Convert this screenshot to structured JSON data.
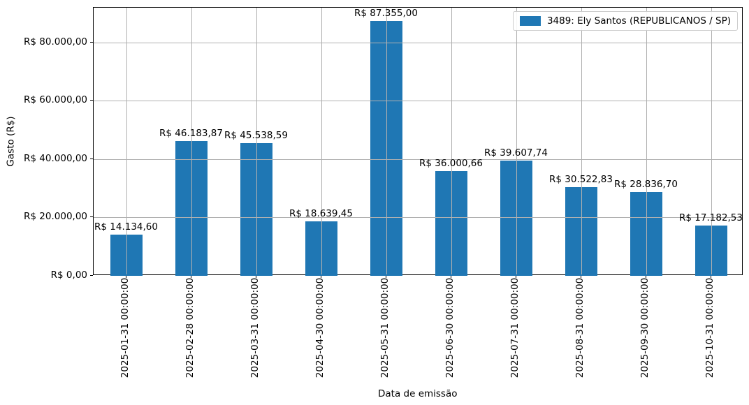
{
  "chart_data": {
    "type": "bar",
    "xlabel": "Data de emissão",
    "ylabel": "Gasto (R$)",
    "legend": {
      "label": "3489: Ely Santos (REPUBLICANOS / SP)",
      "position": "upper right"
    },
    "bar_color": "#1f77b4",
    "grid": true,
    "grid_color": "#b0b0b0",
    "background_color": "#ffffff",
    "ylim": [
      0,
      91976
    ],
    "categories": [
      "2025-01-31 00:00:00",
      "2025-02-28 00:00:00",
      "2025-03-31 00:00:00",
      "2025-04-30 00:00:00",
      "2025-05-31 00:00:00",
      "2025-06-30 00:00:00",
      "2025-07-31 00:00:00",
      "2025-08-31 00:00:00",
      "2025-09-30 00:00:00",
      "2025-10-31 00:00:00"
    ],
    "values": [
      14134.6,
      46183.87,
      45538.59,
      18639.45,
      87355.0,
      36000.66,
      39607.74,
      30522.83,
      28836.7,
      17182.53
    ],
    "bar_labels": [
      "R$ 14.134,60",
      "R$ 46.183,87",
      "R$ 45.538,59",
      "R$ 18.639,45",
      "R$ 87.355,00",
      "R$ 36.000,66",
      "R$ 39.607,74",
      "R$ 30.522,83",
      "R$ 28.836,70",
      "R$ 17.182,53"
    ],
    "y_ticks": [
      {
        "value": 0,
        "label": "R$ 0,00"
      },
      {
        "value": 20000,
        "label": "R$ 20.000,00"
      },
      {
        "value": 40000,
        "label": "R$ 40.000,00"
      },
      {
        "value": 60000,
        "label": "R$ 60.000,00"
      },
      {
        "value": 80000,
        "label": "R$ 80.000,00"
      }
    ]
  }
}
